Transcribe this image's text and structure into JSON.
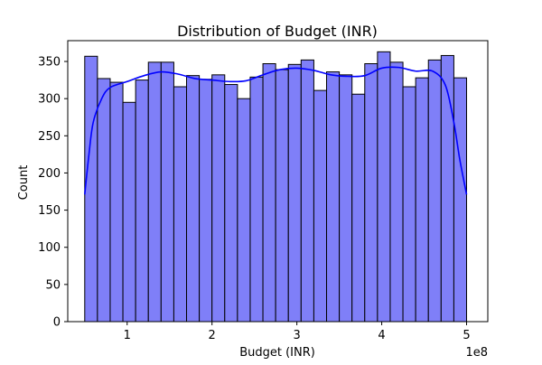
{
  "chart_data": {
    "type": "bar",
    "title": "Distribution of Budget (INR)",
    "xlabel": "Budget (INR)",
    "ylabel": "Count",
    "x_offset_label": "1e8",
    "xlim": [
      0.3,
      5.25
    ],
    "ylim": [
      0,
      378
    ],
    "x_ticks": [
      1,
      2,
      3,
      4,
      5
    ],
    "x_tick_labels": [
      "1",
      "2",
      "3",
      "4",
      "5"
    ],
    "y_ticks": [
      0,
      50,
      100,
      150,
      200,
      250,
      300,
      350
    ],
    "y_tick_labels": [
      "0",
      "50",
      "100",
      "150",
      "200",
      "250",
      "300",
      "350"
    ],
    "bin_start": 0.5,
    "bin_end": 5.0,
    "bin_count": 30,
    "counts": [
      357,
      327,
      322,
      295,
      325,
      349,
      349,
      316,
      331,
      326,
      332,
      319,
      300,
      329,
      347,
      339,
      346,
      352,
      311,
      336,
      332,
      306,
      347,
      363,
      349,
      316,
      328,
      352,
      358,
      328
    ],
    "kde": {
      "x": [
        0.5,
        0.55,
        0.6,
        0.7,
        0.8,
        1.0,
        1.2,
        1.4,
        1.6,
        1.8,
        2.0,
        2.2,
        2.4,
        2.6,
        2.8,
        3.0,
        3.2,
        3.4,
        3.6,
        3.8,
        4.0,
        4.2,
        4.4,
        4.6,
        4.75,
        4.85,
        4.92,
        5.0
      ],
      "y": [
        171,
        225,
        268,
        300,
        315,
        323,
        331,
        336,
        333,
        327,
        325,
        323,
        324,
        332,
        339,
        341,
        338,
        332,
        330,
        331,
        341,
        342,
        337,
        337,
        318,
        268,
        218,
        171
      ]
    },
    "colors": {
      "bar_fill": "#7f7ff8",
      "bar_edge": "#000000",
      "kde_line": "#0000ff"
    },
    "grid": false,
    "legend": "none"
  }
}
